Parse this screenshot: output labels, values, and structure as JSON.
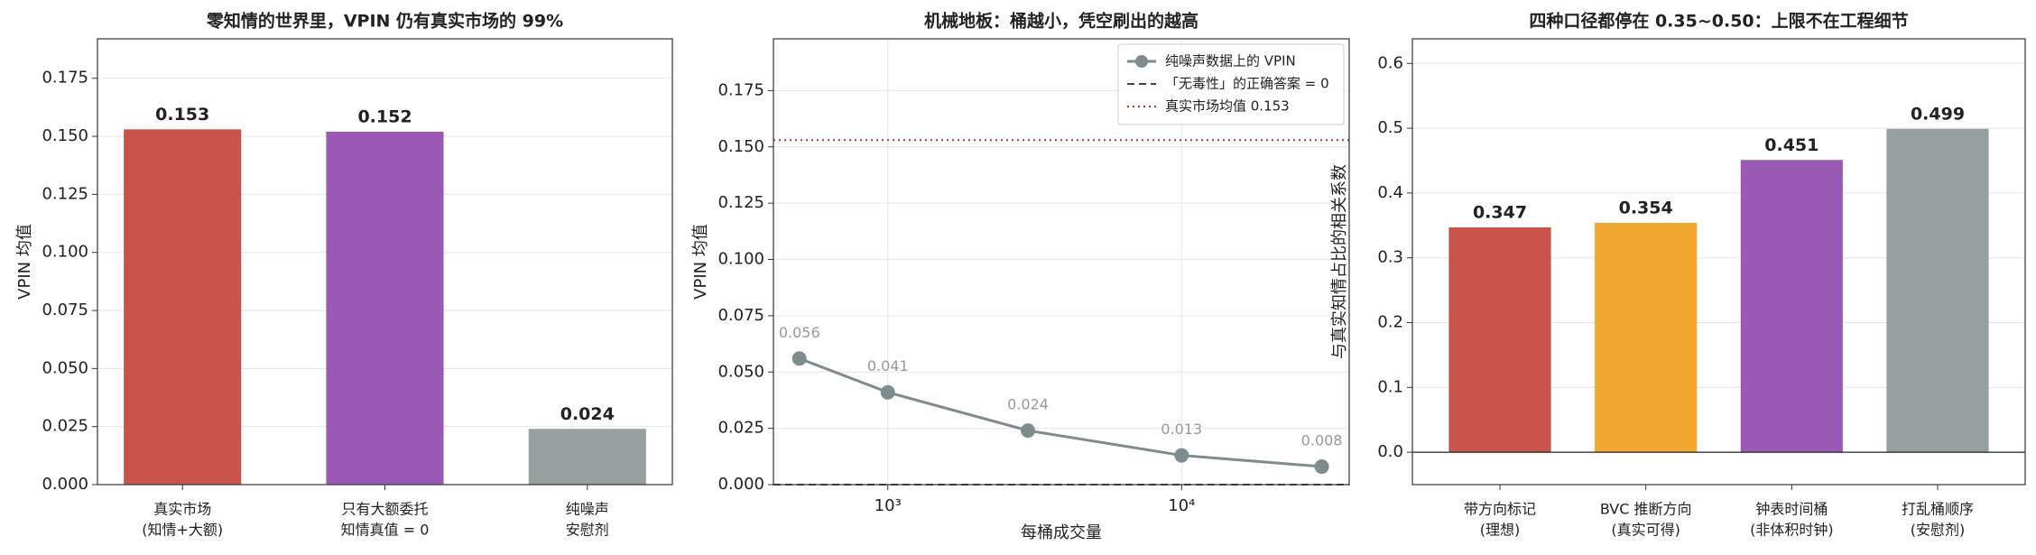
{
  "chart_data": [
    {
      "type": "bar",
      "title": "零知情的世界里，VPIN 仍有真实市场的 99%",
      "ylabel": "VPIN 均值",
      "categories": [
        [
          "真实市场",
          "(知情+大额)"
        ],
        [
          "只有大额委托",
          "知情真值 = 0"
        ],
        [
          "纯噪声",
          "安慰剂"
        ]
      ],
      "values": [
        0.153,
        0.152,
        0.024
      ],
      "colors": [
        "#c9524a",
        "#9b59b6",
        "#95a09f"
      ],
      "ylim": [
        0,
        0.192
      ],
      "yticks": [
        {
          "value": 0,
          "label": "0.000"
        },
        {
          "value": 0.025,
          "label": "0.025"
        },
        {
          "value": 0.05,
          "label": "0.050"
        },
        {
          "value": 0.075,
          "label": "0.075"
        },
        {
          "value": 0.1,
          "label": "0.100"
        },
        {
          "value": 0.125,
          "label": "0.125"
        },
        {
          "value": 0.15,
          "label": "0.150"
        },
        {
          "value": 0.175,
          "label": "0.175"
        }
      ],
      "grid": true
    },
    {
      "type": "line",
      "title": "机械地板：桶越小，凭空刷出的越高",
      "ylabel": "VPIN 均值",
      "xlabel": "每桶成交量",
      "x": [
        500,
        1000,
        3000,
        10000,
        30000
      ],
      "series": [
        {
          "name": "纯噪声数据上的 VPIN",
          "color": "#7f8c8d",
          "values": [
            0.056,
            0.041,
            0.024,
            0.013,
            0.008
          ]
        }
      ],
      "hlines": [
        {
          "y": 0,
          "color": "#444444",
          "style": "dashed",
          "label": "「无毒性」的正确答案 = 0"
        },
        {
          "y": 0.153,
          "color": "#d62728",
          "style": "dotted",
          "label": "真实市场均值 0.153"
        }
      ],
      "xlog": true,
      "xlim": [
        408,
        37200
      ],
      "xticks": [
        {
          "value": 1000,
          "label": "10³"
        },
        {
          "value": 10000,
          "label": "10⁴"
        }
      ],
      "ylim": [
        0,
        0.198
      ],
      "yticks": [
        {
          "value": 0,
          "label": "0.000"
        },
        {
          "value": 0.025,
          "label": "0.025"
        },
        {
          "value": 0.05,
          "label": "0.050"
        },
        {
          "value": 0.075,
          "label": "0.075"
        },
        {
          "value": 0.1,
          "label": "0.100"
        },
        {
          "value": 0.125,
          "label": "0.125"
        },
        {
          "value": 0.15,
          "label": "0.150"
        },
        {
          "value": 0.175,
          "label": "0.175"
        }
      ],
      "grid": true,
      "legend": "upper right"
    },
    {
      "type": "bar",
      "title": "四种口径都停在 0.35~0.50：上限不在工程细节",
      "ylabel": "与真实知情占比的相关系数",
      "categories": [
        [
          "带方向标记",
          "(理想)"
        ],
        [
          "BVC 推断方向",
          "(真实可得)"
        ],
        [
          "钟表时间桶",
          "(非体积时钟)"
        ],
        [
          "打乱桶顺序",
          "(安慰剂)"
        ]
      ],
      "values": [
        0.347,
        0.354,
        0.451,
        0.499
      ],
      "colors": [
        "#c9524a",
        "#f0a830",
        "#9b59b6",
        "#95a09f"
      ],
      "ylim": [
        -0.05,
        0.638
      ],
      "yticks": [
        {
          "value": 0,
          "label": "0.0"
        },
        {
          "value": 0.1,
          "label": "0.1"
        },
        {
          "value": 0.2,
          "label": "0.2"
        },
        {
          "value": 0.3,
          "label": "0.3"
        },
        {
          "value": 0.4,
          "label": "0.4"
        },
        {
          "value": 0.5,
          "label": "0.5"
        },
        {
          "value": 0.6,
          "label": "0.6"
        }
      ],
      "grid": true,
      "zero_line": true
    }
  ]
}
